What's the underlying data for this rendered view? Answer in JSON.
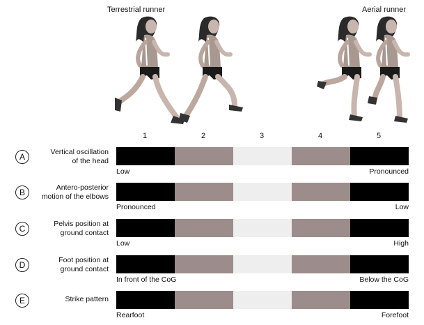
{
  "header": {
    "left_title": "Terrestrial runner",
    "right_title": "Aerial runner"
  },
  "figures": [
    {
      "icon": "runner-icon",
      "stance": "terrestrial"
    },
    {
      "icon": "runner-icon",
      "stance": "terrestrial"
    },
    {
      "icon": "runner-icon",
      "stance": "aerial"
    },
    {
      "icon": "runner-icon",
      "stance": "aerial"
    }
  ],
  "columns": [
    "1",
    "2",
    "3",
    "4",
    "5"
  ],
  "segment_colors": [
    "#000000",
    "#9c8c8c",
    "#eeeeee",
    "#9c8c8c",
    "#000000"
  ],
  "rows": [
    {
      "letter": "A",
      "label_line1": "Vertical oscillation",
      "label_line2": "of the head",
      "low": "Low",
      "high": "Pronounced"
    },
    {
      "letter": "B",
      "label_line1": "Antero-posterior",
      "label_line2": "motion of the elbows",
      "low": "Pronounced",
      "high": "Low"
    },
    {
      "letter": "C",
      "label_line1": "Pelvis position at",
      "label_line2": "ground contact",
      "low": "Low",
      "high": "High"
    },
    {
      "letter": "D",
      "label_line1": "Foot position at",
      "label_line2": "ground contact",
      "low": "In front of the CoG",
      "high": "Below the CoG"
    },
    {
      "letter": "E",
      "label_line1": "Strike pattern",
      "label_line2": "",
      "low": "Rearfoot",
      "high": "Forefoot"
    }
  ]
}
